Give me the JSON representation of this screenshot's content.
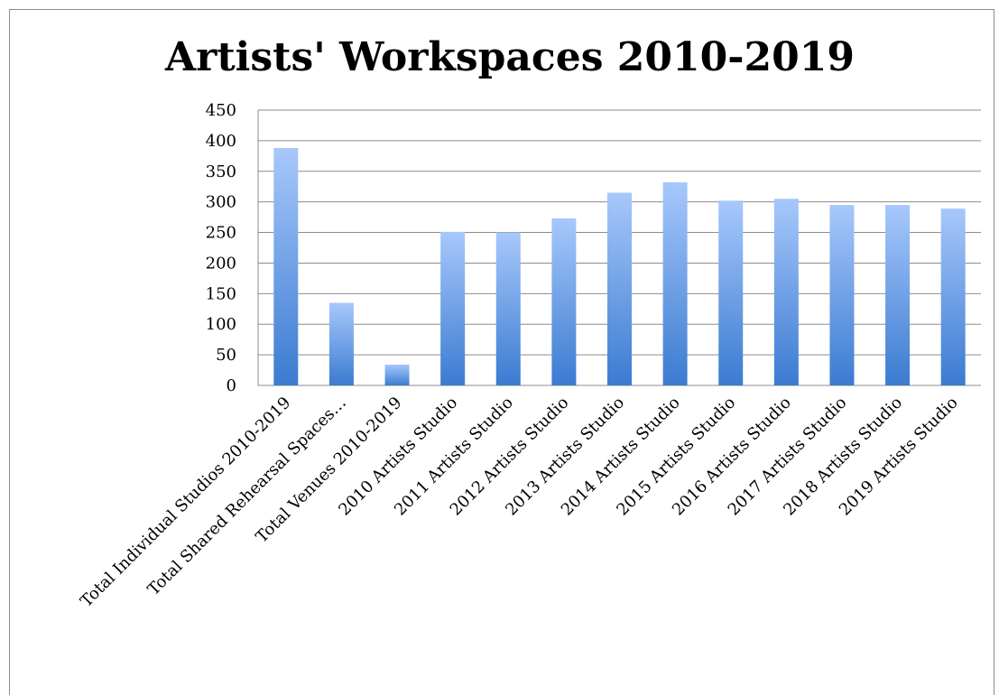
{
  "chart_data": {
    "type": "bar",
    "title": "Artists' Workspaces 2010-2019",
    "xlabel": "",
    "ylabel": "",
    "ylim": [
      0,
      450
    ],
    "yticks": [
      0,
      50,
      100,
      150,
      200,
      250,
      300,
      350,
      400,
      450
    ],
    "grid": true,
    "legend": "none",
    "categories": [
      "Total Individual Studios 2010-2019",
      "Total Shared Rehearsal Spaces…",
      "Total Venues 2010-2019",
      "2010 Artists Studio",
      "2011 Artists Studio",
      "2012 Artists Studio",
      "2013 Artists Studio",
      "2014 Artists Studio",
      "2015 Artists Studio",
      "2016 Artists Studio",
      "2017 Artists Studio",
      "2018 Artists Studio",
      "2019 Artists Studio"
    ],
    "values": [
      388,
      135,
      34,
      251,
      250,
      273,
      315,
      332,
      302,
      305,
      295,
      295,
      289
    ],
    "colors": {
      "bar_light": "#a7c8fb",
      "bar_dark": "#3b7bd1",
      "grid": "#8c8c8c"
    }
  }
}
